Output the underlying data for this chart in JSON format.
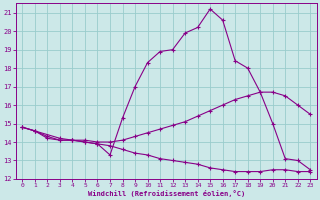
{
  "xlabel": "Windchill (Refroidissement éolien,°C)",
  "xlim": [
    -0.5,
    23.5
  ],
  "ylim": [
    12,
    21.5
  ],
  "yticks": [
    12,
    13,
    14,
    15,
    16,
    17,
    18,
    19,
    20,
    21
  ],
  "xticks": [
    0,
    1,
    2,
    3,
    4,
    5,
    6,
    7,
    8,
    9,
    10,
    11,
    12,
    13,
    14,
    15,
    16,
    17,
    18,
    19,
    20,
    21,
    22,
    23
  ],
  "bg_color": "#cce8e8",
  "line_color": "#880088",
  "grid_color": "#99cccc",
  "line1_x": [
    0,
    1,
    2,
    3,
    4,
    5,
    6,
    7,
    8,
    9,
    10,
    11,
    12,
    13,
    14,
    15,
    16,
    17,
    18,
    19,
    20,
    21,
    22,
    23
  ],
  "line1_y": [
    14.8,
    14.6,
    14.2,
    14.1,
    14.1,
    14.0,
    13.9,
    13.3,
    15.3,
    17.0,
    18.3,
    18.9,
    19.0,
    19.9,
    20.2,
    21.2,
    20.6,
    18.4,
    18.0,
    16.7,
    15.0,
    13.1,
    13.0,
    12.5
  ],
  "line2_x": [
    0,
    1,
    3,
    4,
    5,
    6,
    7,
    8,
    9,
    10,
    11,
    12,
    13,
    14,
    15,
    16,
    17,
    18,
    19,
    20,
    21,
    22,
    23
  ],
  "line2_y": [
    14.8,
    14.6,
    14.2,
    14.1,
    14.1,
    14.0,
    14.0,
    14.1,
    14.3,
    14.5,
    14.7,
    14.9,
    15.1,
    15.4,
    15.7,
    16.0,
    16.3,
    16.5,
    16.7,
    16.7,
    16.5,
    16.0,
    15.5
  ],
  "line3_x": [
    0,
    1,
    2,
    3,
    4,
    5,
    6,
    7,
    8,
    9,
    10,
    11,
    12,
    13,
    14,
    15,
    16,
    17,
    18,
    19,
    20,
    21,
    22,
    23
  ],
  "line3_y": [
    14.8,
    14.6,
    14.3,
    14.1,
    14.1,
    14.0,
    13.9,
    13.8,
    13.6,
    13.4,
    13.3,
    13.1,
    13.0,
    12.9,
    12.8,
    12.6,
    12.5,
    12.4,
    12.4,
    12.4,
    12.5,
    12.5,
    12.4,
    12.4
  ]
}
